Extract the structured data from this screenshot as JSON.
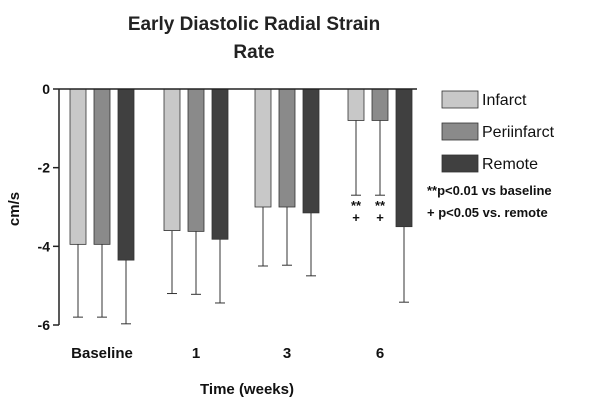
{
  "chart_data": {
    "type": "bar",
    "title_lines": [
      "Early Diastolic Radial Strain",
      "Rate"
    ],
    "xlabel": "Time (weeks)",
    "ylabel": "cm/s",
    "ylim": [
      -6,
      0
    ],
    "yticks": [
      0,
      -2,
      -4,
      -6
    ],
    "ytick_labels": [
      "0",
      "-2",
      "-4",
      "-6"
    ],
    "categories": [
      "Baseline",
      "1",
      "3",
      "6"
    ],
    "series": [
      {
        "name": "Infarct",
        "color": "#c8c8c8",
        "values": [
          -3.95,
          -3.6,
          -3.0,
          -0.8
        ],
        "sd": [
          1.85,
          1.6,
          1.5,
          1.9
        ]
      },
      {
        "name": "Periinfarct",
        "color": "#8a8a8a",
        "values": [
          -3.95,
          -3.62,
          -3.0,
          -0.8
        ],
        "sd": [
          1.85,
          1.6,
          1.48,
          1.9
        ]
      },
      {
        "name": "Remote",
        "color": "#404040",
        "values": [
          -4.35,
          -3.82,
          -3.15,
          -3.5
        ],
        "sd": [
          1.62,
          1.62,
          1.6,
          1.92
        ]
      }
    ],
    "significance_marks": [
      {
        "category": "6",
        "series": "Infarct",
        "lines": [
          "**",
          "+"
        ]
      },
      {
        "category": "6",
        "series": "Periinfarct",
        "lines": [
          "**",
          "+"
        ]
      }
    ],
    "annotations": [
      "**p<0.01 vs baseline",
      "+ p<0.05 vs. remote"
    ],
    "legend_position": "right",
    "grid": false
  }
}
